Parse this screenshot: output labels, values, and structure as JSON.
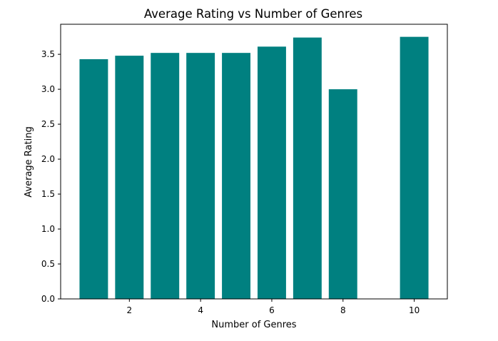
{
  "chart_data": {
    "type": "bar",
    "title": "Average Rating vs Number of Genres",
    "xlabel": "Number of Genres",
    "ylabel": "Average Rating",
    "x": [
      1,
      2,
      3,
      4,
      5,
      6,
      7,
      8,
      10
    ],
    "values": [
      3.43,
      3.48,
      3.52,
      3.52,
      3.52,
      3.61,
      3.74,
      3.0,
      3.75
    ],
    "xlim": [
      0.07,
      10.93
    ],
    "ylim": [
      0,
      3.93
    ],
    "xticks": [
      2,
      4,
      6,
      8,
      10
    ],
    "yticks": [
      0.0,
      0.5,
      1.0,
      1.5,
      2.0,
      2.5,
      3.0,
      3.5
    ],
    "bar_color": "#008080",
    "grid": false,
    "legend": "none"
  }
}
